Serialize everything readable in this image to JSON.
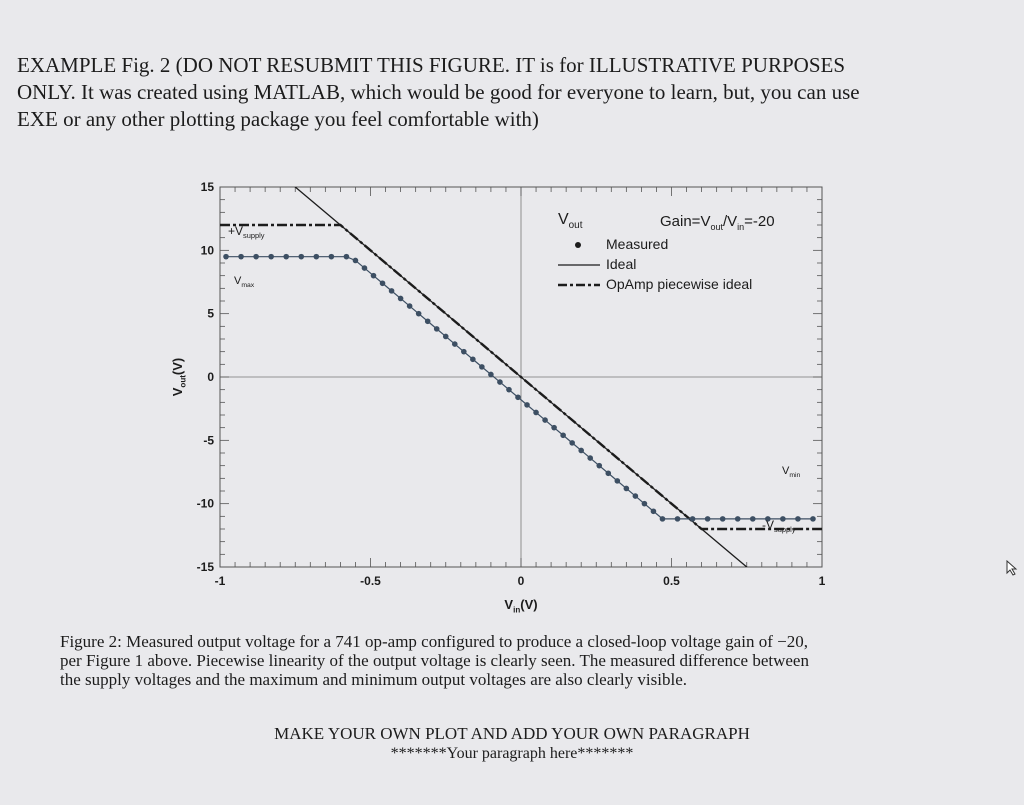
{
  "header": {
    "line1": "EXAMPLE Fig. 2 (DO NOT RESUBMIT THIS FIGURE. IT is for ILLUSTRATIVE PURPOSES",
    "line2": "ONLY. It was created using MATLAB, which would be good for everyone to learn, but, you can use",
    "line3": "EXE or any other plotting package you feel comfortable with)"
  },
  "chart_data": {
    "type": "line",
    "xlabel_main": "V",
    "xlabel_sub": "in",
    "xlabel_unit": "(V)",
    "ylabel_main": "V",
    "ylabel_sub": "out",
    "ylabel_unit": "(V)",
    "xlim": [
      -1,
      1
    ],
    "ylim": [
      -15,
      15
    ],
    "x_ticks": [
      -1,
      -0.5,
      0,
      0.5,
      1
    ],
    "x_tick_labels": [
      "-1",
      "-0.5",
      "0",
      "0.5",
      "1"
    ],
    "y_ticks": [
      15,
      10,
      5,
      0,
      -5,
      -10,
      -15
    ],
    "y_tick_labels": [
      "15",
      "10",
      "5",
      "0",
      "-5",
      "-10",
      "-15"
    ],
    "grid": "axes through origin only",
    "legend": {
      "title_main": "V",
      "title_sub": "out",
      "gain_text": "Gain=V",
      "gain_sub1": "out",
      "gain_mid": "/V",
      "gain_sub2": "in",
      "gain_end": "=-20",
      "entries": [
        "Measured",
        "Ideal",
        "OpAmp piecewise ideal"
      ],
      "placement": "top-right"
    },
    "annotations": {
      "vsupply_pos": "+V",
      "vsupply_pos_sub": "supply",
      "vmax": "V",
      "vmax_sub": "max",
      "vmin": "V",
      "vmin_sub": "min",
      "vsupply_neg": "-V",
      "vsupply_neg_sub": "supply"
    },
    "series": [
      {
        "name": "Ideal",
        "x": [
          -1,
          1
        ],
        "y": [
          20,
          -20
        ]
      },
      {
        "name": "OpAmp piecewise ideal",
        "x": [
          -1,
          -0.6,
          0.6,
          1
        ],
        "y": [
          12,
          12,
          -12,
          -12
        ]
      },
      {
        "name": "Measured",
        "x": [
          -0.98,
          -0.93,
          -0.88,
          -0.83,
          -0.78,
          -0.73,
          -0.68,
          -0.63,
          -0.58,
          -0.55,
          -0.52,
          -0.49,
          -0.46,
          -0.43,
          -0.4,
          -0.37,
          -0.34,
          -0.31,
          -0.28,
          -0.25,
          -0.22,
          -0.19,
          -0.16,
          -0.13,
          -0.1,
          -0.07,
          -0.04,
          -0.01,
          0.02,
          0.05,
          0.08,
          0.11,
          0.14,
          0.17,
          0.2,
          0.23,
          0.26,
          0.29,
          0.32,
          0.35,
          0.38,
          0.41,
          0.44,
          0.47,
          0.52,
          0.57,
          0.62,
          0.67,
          0.72,
          0.77,
          0.82,
          0.87,
          0.92,
          0.97
        ],
        "y": [
          9.5,
          9.5,
          9.5,
          9.5,
          9.5,
          9.5,
          9.5,
          9.5,
          9.5,
          9.2,
          8.6,
          8.0,
          7.4,
          6.8,
          6.2,
          5.6,
          5.0,
          4.4,
          3.8,
          3.2,
          2.6,
          2.0,
          1.4,
          0.8,
          0.2,
          -0.4,
          -1.0,
          -1.6,
          -2.2,
          -2.8,
          -3.4,
          -4.0,
          -4.6,
          -5.2,
          -5.8,
          -6.4,
          -7.0,
          -7.6,
          -8.2,
          -8.8,
          -9.4,
          -10.0,
          -10.6,
          -11.2,
          -11.2,
          -11.2,
          -11.2,
          -11.2,
          -11.2,
          -11.2,
          -11.2,
          -11.2,
          -11.2,
          -11.2
        ]
      }
    ]
  },
  "caption": {
    "line1": "Figure 2: Measured output voltage for a 741 op-amp configured to produce a closed-loop voltage gain of −20,",
    "line2": "per Figure 1 above. Piecewise linearity of the output voltage is clearly seen. The measured difference between",
    "line3": "the supply voltages and the maximum and minimum output voltages are also clearly visible."
  },
  "instruction": "MAKE YOUR OWN PLOT AND ADD YOUR OWN PARAGRAPH",
  "paragraph_placeholder": "*******Your paragraph here*******",
  "colors": {
    "background": "#e9e9ec",
    "ink": "#1c1c1c",
    "axis": "#555555",
    "measured": "#3d4f63"
  },
  "icons": {
    "cursor": "pointer-cursor-icon"
  }
}
